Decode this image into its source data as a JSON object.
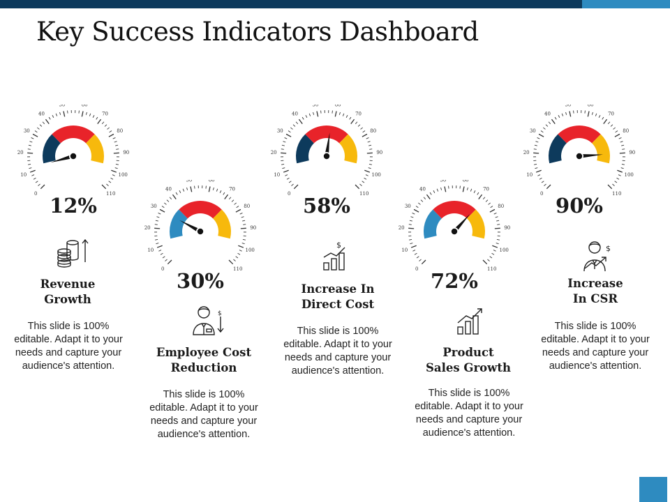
{
  "slide": {
    "title": "Key Success Indicators Dashboard",
    "colors": {
      "topbar_dark": "#0d3a5c",
      "topbar_accent": "#2e8bc0",
      "gauge_dark": "#0d3a5c",
      "gauge_red": "#e8232a",
      "gauge_yellow": "#f7b90c",
      "gauge_blue": "#2e8bc0"
    }
  },
  "gauge_scale": [
    "0",
    "10",
    "20",
    "30",
    "40",
    "50",
    "60",
    "70",
    "80",
    "90",
    "100",
    "110"
  ],
  "kpis": [
    {
      "id": "revenue-growth",
      "value": 12,
      "percent_label": "12%",
      "title_lines": [
        "Revenue",
        "Growth"
      ],
      "description": "This slide is 100% editable. Adapt it to your needs and capture your audience's attention.",
      "icon": "coins-stack-icon",
      "left_segment_color": "#0d3a5c"
    },
    {
      "id": "employee-cost-reduction",
      "value": 30,
      "percent_label": "30%",
      "title_lines": [
        "Employee Cost",
        "Reduction"
      ],
      "description": "This slide is 100% editable. Adapt it to your needs and capture your audience's attention.",
      "icon": "employee-dollar-down-icon",
      "left_segment_color": "#2e8bc0"
    },
    {
      "id": "increase-direct-cost",
      "value": 58,
      "percent_label": "58%",
      "title_lines": [
        "Increase In",
        "Direct Cost"
      ],
      "description": "This slide is 100% editable. Adapt it to your needs and capture your audience's attention.",
      "icon": "bar-chart-dollar-icon",
      "left_segment_color": "#0d3a5c"
    },
    {
      "id": "product-sales-growth",
      "value": 72,
      "percent_label": "72%",
      "title_lines": [
        "Product",
        "Sales Growth"
      ],
      "description": "This slide is 100% editable. Adapt it to your needs and capture your audience's attention.",
      "icon": "bar-chart-trend-icon",
      "left_segment_color": "#2e8bc0"
    },
    {
      "id": "increase-csr",
      "value": 90,
      "percent_label": "90%",
      "title_lines": [
        "Increase",
        "In CSR"
      ],
      "description": "This slide is 100% editable. Adapt it to your needs and capture your audience's attention.",
      "icon": "person-growth-dollar-icon",
      "left_segment_color": "#0d3a5c"
    }
  ]
}
